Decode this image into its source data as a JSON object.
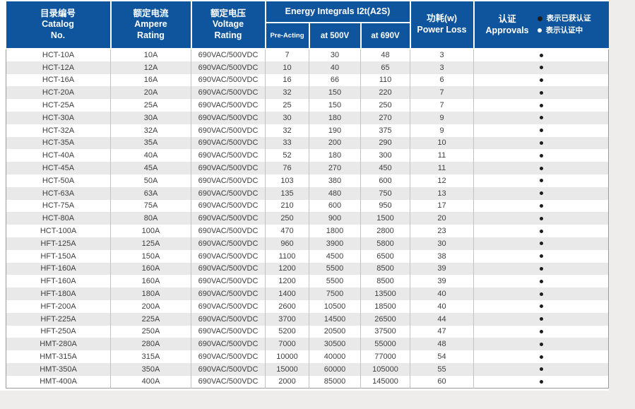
{
  "colors": {
    "header_blue": "#0e559d",
    "header_text": "#ffffff",
    "row_alt": "#e9e9e9",
    "text": "#3e3e3e",
    "page_bg": "#efedeb",
    "panel_bg": "#ffffff",
    "dot_certified": "#1d1d1b",
    "dot_pending": "#ffffff"
  },
  "table": {
    "header": {
      "catalog": {
        "zh": "目录编号",
        "en1": "Catalog",
        "en2": "No."
      },
      "ampere": {
        "zh": "额定电流",
        "en1": "Ampere",
        "en2": "Rating"
      },
      "voltage": {
        "zh": "额定电压",
        "en1": "Voltage",
        "en2": "Rating"
      },
      "energy": {
        "en": "Energy Integrals I2t(A2S)"
      },
      "sub": {
        "pre_acting": "Pre-Acting",
        "at_500v": "at 500V",
        "at_690v": "at 690V"
      },
      "power": {
        "zh": "功耗(w)",
        "en": "Power Loss"
      },
      "approvals": {
        "zh": "认证",
        "en": "Approvals"
      }
    },
    "legend": [
      {
        "status": "certified",
        "label": "表示已获认证"
      },
      {
        "status": "pending",
        "label": "表示认证中"
      }
    ],
    "rows": [
      {
        "catalog": "HCT-10A",
        "ampere": "10A",
        "voltage": "690VAC/500VDC",
        "pre_acting": "7",
        "at_500v": "30",
        "at_690v": "48",
        "power_loss": "3",
        "approval": "certified"
      },
      {
        "catalog": "HCT-12A",
        "ampere": "12A",
        "voltage": "690VAC/500VDC",
        "pre_acting": "10",
        "at_500v": "40",
        "at_690v": "65",
        "power_loss": "3",
        "approval": "certified"
      },
      {
        "catalog": "HCT-16A",
        "ampere": "16A",
        "voltage": "690VAC/500VDC",
        "pre_acting": "16",
        "at_500v": "66",
        "at_690v": "110",
        "power_loss": "6",
        "approval": "certified"
      },
      {
        "catalog": "HCT-20A",
        "ampere": "20A",
        "voltage": "690VAC/500VDC",
        "pre_acting": "32",
        "at_500v": "150",
        "at_690v": "220",
        "power_loss": "7",
        "approval": "certified"
      },
      {
        "catalog": "HCT-25A",
        "ampere": "25A",
        "voltage": "690VAC/500VDC",
        "pre_acting": "25",
        "at_500v": "150",
        "at_690v": "250",
        "power_loss": "7",
        "approval": "certified"
      },
      {
        "catalog": "HCT-30A",
        "ampere": "30A",
        "voltage": "690VAC/500VDC",
        "pre_acting": "30",
        "at_500v": "180",
        "at_690v": "270",
        "power_loss": "9",
        "approval": "certified"
      },
      {
        "catalog": "HCT-32A",
        "ampere": "32A",
        "voltage": "690VAC/500VDC",
        "pre_acting": "32",
        "at_500v": "190",
        "at_690v": "375",
        "power_loss": "9",
        "approval": "certified"
      },
      {
        "catalog": "HCT-35A",
        "ampere": "35A",
        "voltage": "690VAC/500VDC",
        "pre_acting": "33",
        "at_500v": "200",
        "at_690v": "290",
        "power_loss": "10",
        "approval": "certified"
      },
      {
        "catalog": "HCT-40A",
        "ampere": "40A",
        "voltage": "690VAC/500VDC",
        "pre_acting": "52",
        "at_500v": "180",
        "at_690v": "300",
        "power_loss": "11",
        "approval": "certified"
      },
      {
        "catalog": "HCT-45A",
        "ampere": "45A",
        "voltage": "690VAC/500VDC",
        "pre_acting": "76",
        "at_500v": "270",
        "at_690v": "450",
        "power_loss": "11",
        "approval": "certified"
      },
      {
        "catalog": "HCT-50A",
        "ampere": "50A",
        "voltage": "690VAC/500VDC",
        "pre_acting": "103",
        "at_500v": "380",
        "at_690v": "600",
        "power_loss": "12",
        "approval": "certified"
      },
      {
        "catalog": "HCT-63A",
        "ampere": "63A",
        "voltage": "690VAC/500VDC",
        "pre_acting": "135",
        "at_500v": "480",
        "at_690v": "750",
        "power_loss": "13",
        "approval": "certified"
      },
      {
        "catalog": "HCT-75A",
        "ampere": "75A",
        "voltage": "690VAC/500VDC",
        "pre_acting": "210",
        "at_500v": "600",
        "at_690v": "950",
        "power_loss": "17",
        "approval": "certified"
      },
      {
        "catalog": "HCT-80A",
        "ampere": "80A",
        "voltage": "690VAC/500VDC",
        "pre_acting": "250",
        "at_500v": "900",
        "at_690v": "1500",
        "power_loss": "20",
        "approval": "certified"
      },
      {
        "catalog": "HCT-100A",
        "ampere": "100A",
        "voltage": "690VAC/500VDC",
        "pre_acting": "470",
        "at_500v": "1800",
        "at_690v": "2800",
        "power_loss": "23",
        "approval": "certified"
      },
      {
        "catalog": "HFT-125A",
        "ampere": "125A",
        "voltage": "690VAC/500VDC",
        "pre_acting": "960",
        "at_500v": "3900",
        "at_690v": "5800",
        "power_loss": "30",
        "approval": "certified"
      },
      {
        "catalog": "HFT-150A",
        "ampere": "150A",
        "voltage": "690VAC/500VDC",
        "pre_acting": "1100",
        "at_500v": "4500",
        "at_690v": "6500",
        "power_loss": "38",
        "approval": "certified"
      },
      {
        "catalog": "HFT-160A",
        "ampere": "160A",
        "voltage": "690VAC/500VDC",
        "pre_acting": "1200",
        "at_500v": "5500",
        "at_690v": "8500",
        "power_loss": "39",
        "approval": "certified"
      },
      {
        "catalog": "HFT-160A",
        "ampere": "160A",
        "voltage": "690VAC/500VDC",
        "pre_acting": "1200",
        "at_500v": "5500",
        "at_690v": "8500",
        "power_loss": "39",
        "approval": "certified"
      },
      {
        "catalog": "HFT-180A",
        "ampere": "180A",
        "voltage": "690VAC/500VDC",
        "pre_acting": "1400",
        "at_500v": "7500",
        "at_690v": "13500",
        "power_loss": "40",
        "approval": "certified"
      },
      {
        "catalog": "HFT-200A",
        "ampere": "200A",
        "voltage": "690VAC/500VDC",
        "pre_acting": "2600",
        "at_500v": "10500",
        "at_690v": "18500",
        "power_loss": "40",
        "approval": "certified"
      },
      {
        "catalog": "HFT-225A",
        "ampere": "225A",
        "voltage": "690VAC/500VDC",
        "pre_acting": "3700",
        "at_500v": "14500",
        "at_690v": "26500",
        "power_loss": "44",
        "approval": "certified"
      },
      {
        "catalog": "HFT-250A",
        "ampere": "250A",
        "voltage": "690VAC/500VDC",
        "pre_acting": "5200",
        "at_500v": "20500",
        "at_690v": "37500",
        "power_loss": "47",
        "approval": "certified"
      },
      {
        "catalog": "HMT-280A",
        "ampere": "280A",
        "voltage": "690VAC/500VDC",
        "pre_acting": "7000",
        "at_500v": "30500",
        "at_690v": "55000",
        "power_loss": "48",
        "approval": "certified"
      },
      {
        "catalog": "HMT-315A",
        "ampere": "315A",
        "voltage": "690VAC/500VDC",
        "pre_acting": "10000",
        "at_500v": "40000",
        "at_690v": "77000",
        "power_loss": "54",
        "approval": "certified"
      },
      {
        "catalog": "HMT-350A",
        "ampere": "350A",
        "voltage": "690VAC/500VDC",
        "pre_acting": "15000",
        "at_500v": "60000",
        "at_690v": "105000",
        "power_loss": "55",
        "approval": "certified"
      },
      {
        "catalog": "HMT-400A",
        "ampere": "400A",
        "voltage": "690VAC/500VDC",
        "pre_acting": "2000",
        "at_500v": "85000",
        "at_690v": "145000",
        "power_loss": "60",
        "approval": "certified"
      }
    ]
  }
}
